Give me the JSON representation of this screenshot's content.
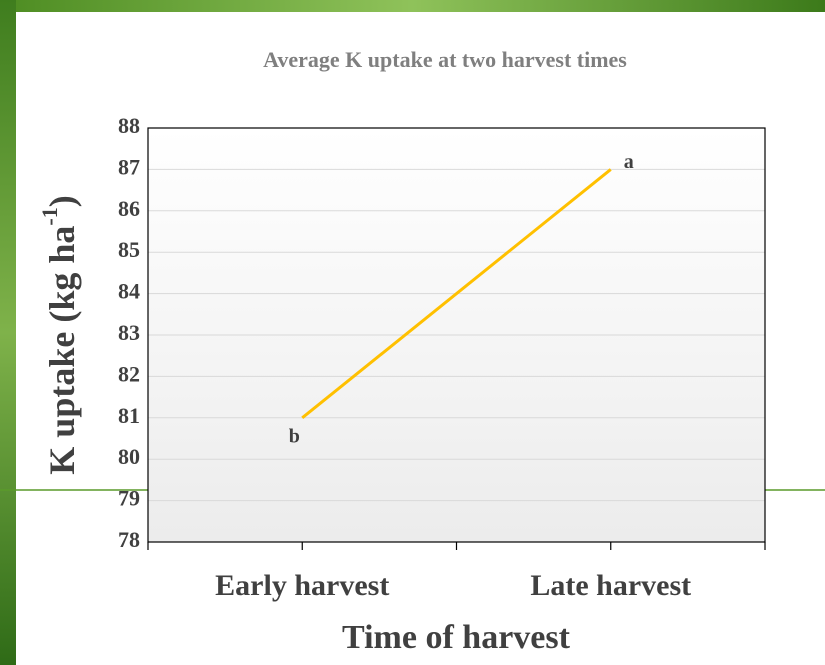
{
  "chart_data": {
    "type": "line",
    "title": "Average K uptake at two harvest times",
    "x_label": "Time of harvest",
    "y_label": "K uptake (kg ha",
    "y_label_sup": "-1",
    "y_label_end": ")",
    "categories": [
      "Early harvest",
      "Late harvest"
    ],
    "values": [
      81,
      87
    ],
    "color": "#ffc000",
    "annotations": [
      "b",
      "a"
    ],
    "ylim": [
      78,
      88
    ],
    "yticks": [
      78,
      79,
      80,
      81,
      82,
      83,
      84,
      85,
      86,
      87,
      88
    ],
    "grid": true
  }
}
